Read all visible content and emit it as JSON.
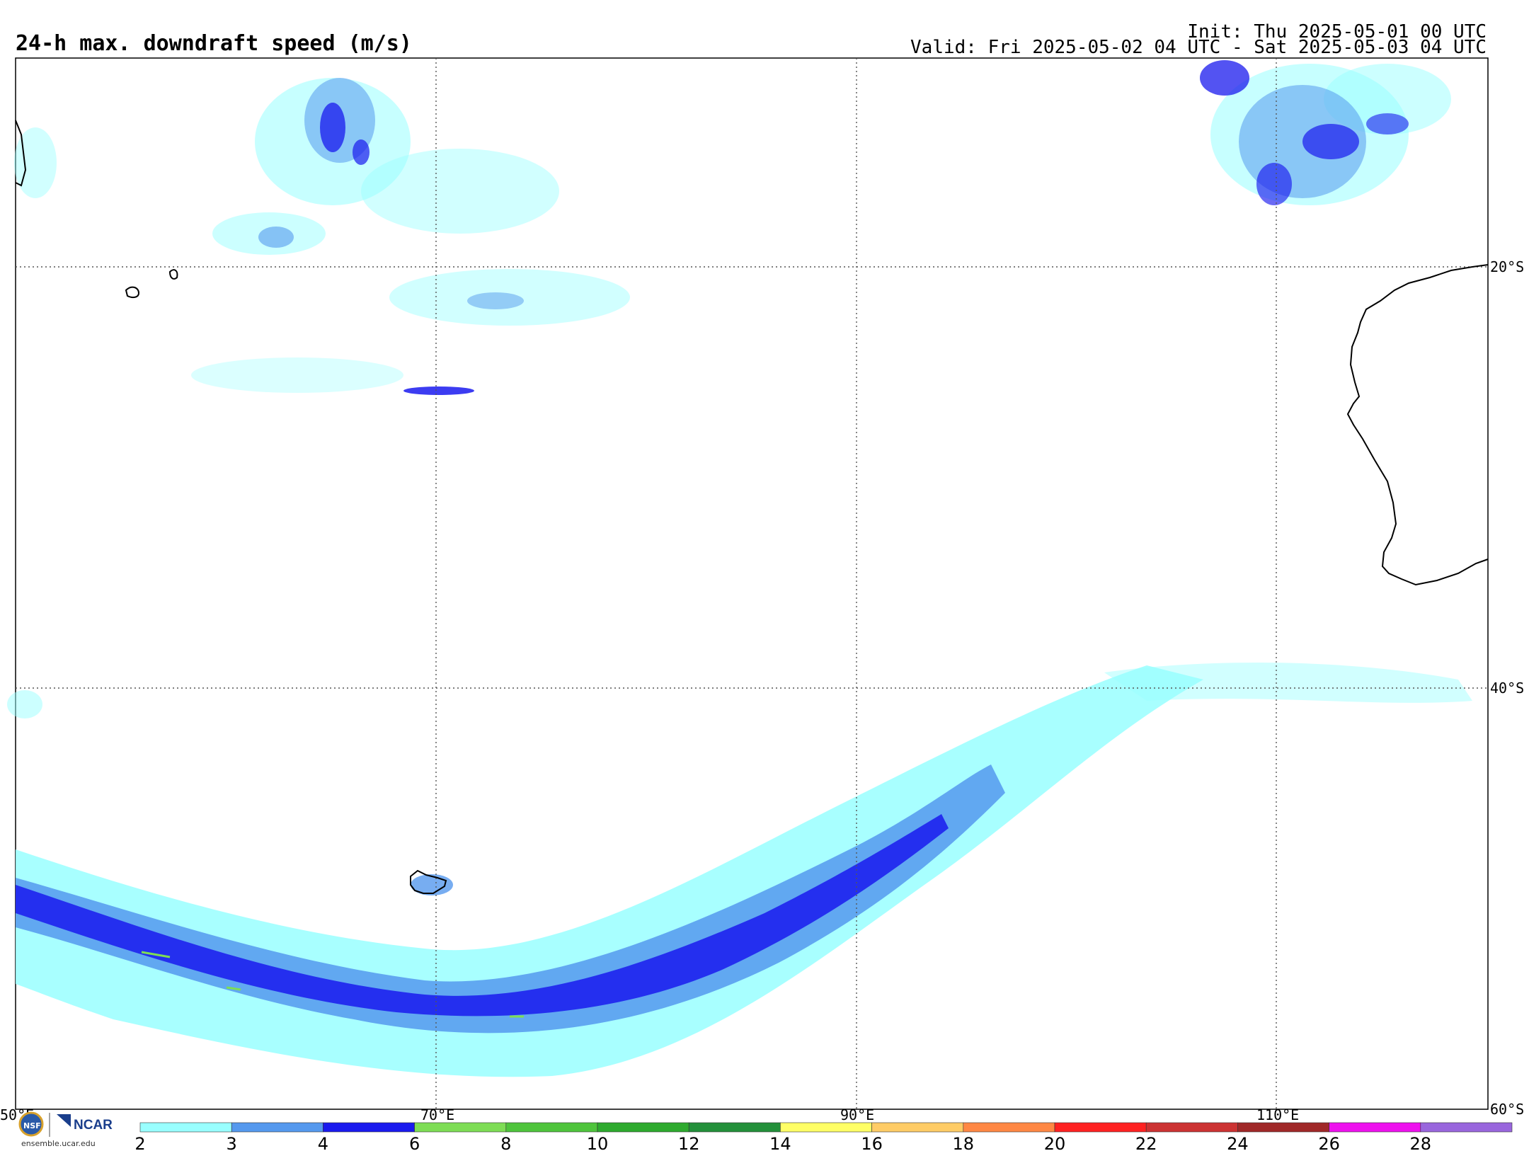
{
  "header": {
    "title": "24-h max. downdraft speed (m/s)",
    "init": "Init: Thu 2025-05-01 00 UTC",
    "valid": "Valid: Fri 2025-05-02 04 UTC - Sat 2025-05-03 04 UTC"
  },
  "map": {
    "lon_labels": [
      "50°E",
      "70°E",
      "90°E",
      "110°E"
    ],
    "lat_labels": [
      "20°S",
      "40°S",
      "60°S"
    ],
    "colors": {
      "c2": "#99ffff",
      "c3": "#5599ee",
      "c4": "#1a1aee",
      "c6": "#7edd55"
    }
  },
  "colorbar": {
    "labels": [
      "2",
      "3",
      "4",
      "6",
      "8",
      "10",
      "12",
      "14",
      "16",
      "18",
      "20",
      "22",
      "24",
      "26",
      "28"
    ],
    "colors": [
      "#99ffff",
      "#5599ee",
      "#1a1aee",
      "#7edd55",
      "#4fc43c",
      "#2eaa2e",
      "#23903a",
      "#ffff66",
      "#ffcc66",
      "#ff8844",
      "#ff2222",
      "#cc3333",
      "#a02828",
      "#ee11ee",
      "#9966dd"
    ]
  },
  "footer": {
    "logo_text": "NCAR",
    "url": "ensemble.ucar.edu"
  }
}
